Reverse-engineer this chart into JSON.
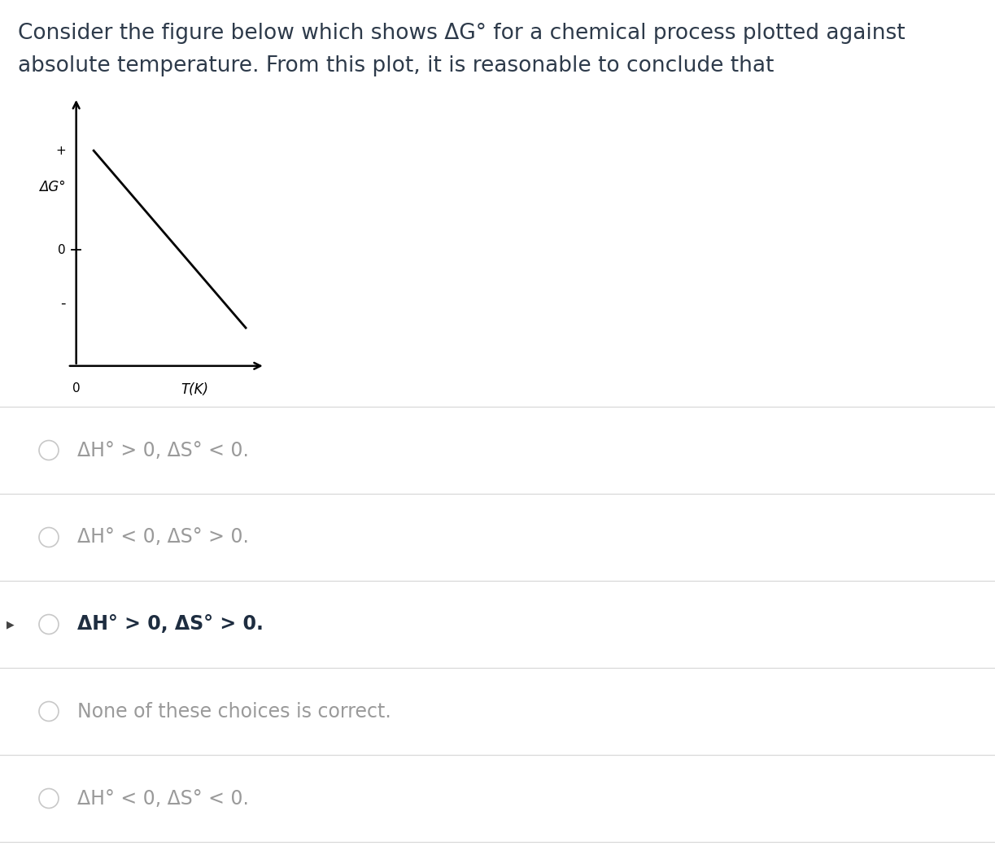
{
  "title_line1": "Consider the figure below which shows ΔG° for a chemical process plotted against",
  "title_line2": "absolute temperature. From this plot, it is reasonable to conclude that",
  "title_fontsize": 19,
  "title_color": "#2d3a4a",
  "background_color": "#ffffff",
  "plot": {
    "ylabel": "ΔG°",
    "xlabel": "T(K)",
    "plus_label": "+",
    "minus_label": "-",
    "zero_y_label": "0",
    "zero_x_label": "0"
  },
  "choices": [
    {
      "text": "ΔH° > 0, ΔS° < 0.",
      "bold": false,
      "color": "#9a9a9a",
      "selected": false
    },
    {
      "text": "ΔH° < 0, ΔS° > 0.",
      "bold": false,
      "color": "#9a9a9a",
      "selected": false
    },
    {
      "text": "ΔH° > 0, ΔS° > 0.",
      "bold": true,
      "color": "#1e2d40",
      "selected": true
    },
    {
      "text": "None of these choices is correct.",
      "bold": false,
      "color": "#9a9a9a",
      "selected": false
    },
    {
      "text": "ΔH° < 0, ΔS° < 0.",
      "bold": false,
      "color": "#9a9a9a",
      "selected": false
    }
  ],
  "divider_color": "#d8d8d8",
  "radio_color": "#c8c8c8",
  "choice_fontsize": 17,
  "selected_marker_color": "#444444"
}
